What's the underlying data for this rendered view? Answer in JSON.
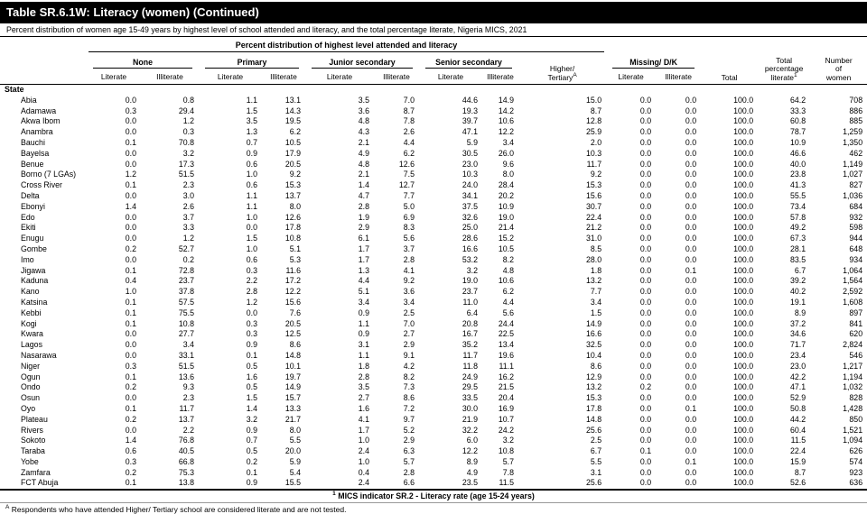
{
  "title": "Table SR.6.1W: Literacy (women) (Continued)",
  "subtitle": "Percent distribution of women age 15-49 years by highest level of school attended and literacy, and the total percentage literate, Nigeria MICS, 2021",
  "header": {
    "span_title": "Percent distribution of highest level attended and literacy",
    "groups": {
      "none": "None",
      "primary": "Primary",
      "junior": "Junior secondary",
      "senior": "Senior secondary",
      "higher_line1": "Higher/",
      "higher_line2": "Tertiary",
      "higher_sup": "A",
      "missing": "Missing/ D/K"
    },
    "sub": {
      "literate": "Literate",
      "illiterate": "Illiterate"
    },
    "total": "Total",
    "total_pct_line1": "Total",
    "total_pct_line2": "percentage",
    "total_pct_line3": "literate",
    "total_pct_sup": "1",
    "women_line1": "Number",
    "women_line2": "of",
    "women_line3": "women"
  },
  "section_label": "State",
  "rows": [
    {
      "state": "Abia",
      "values": [
        "0.0",
        "0.8",
        "1.1",
        "13.1",
        "3.5",
        "7.0",
        "44.6",
        "14.9",
        "15.0",
        "0.0",
        "0.0",
        "100.0",
        "64.2",
        "708"
      ]
    },
    {
      "state": "Adamawa",
      "values": [
        "0.3",
        "29.4",
        "1.5",
        "14.3",
        "3.6",
        "8.7",
        "19.3",
        "14.2",
        "8.7",
        "0.0",
        "0.0",
        "100.0",
        "33.3",
        "886"
      ]
    },
    {
      "state": "Akwa Ibom",
      "values": [
        "0.0",
        "1.2",
        "3.5",
        "19.5",
        "4.8",
        "7.8",
        "39.7",
        "10.6",
        "12.8",
        "0.0",
        "0.0",
        "100.0",
        "60.8",
        "885"
      ]
    },
    {
      "state": "Anambra",
      "values": [
        "0.0",
        "0.3",
        "1.3",
        "6.2",
        "4.3",
        "2.6",
        "47.1",
        "12.2",
        "25.9",
        "0.0",
        "0.0",
        "100.0",
        "78.7",
        "1,259"
      ]
    },
    {
      "state": "Bauchi",
      "values": [
        "0.1",
        "70.8",
        "0.7",
        "10.5",
        "2.1",
        "4.4",
        "5.9",
        "3.4",
        "2.0",
        "0.0",
        "0.0",
        "100.0",
        "10.9",
        "1,350"
      ]
    },
    {
      "state": "Bayelsa",
      "values": [
        "0.0",
        "3.2",
        "0.9",
        "17.9",
        "4.9",
        "6.2",
        "30.5",
        "26.0",
        "10.3",
        "0.0",
        "0.0",
        "100.0",
        "46.6",
        "462"
      ]
    },
    {
      "state": "Benue",
      "values": [
        "0.0",
        "17.3",
        "0.6",
        "20.5",
        "4.8",
        "12.6",
        "23.0",
        "9.6",
        "11.7",
        "0.0",
        "0.0",
        "100.0",
        "40.0",
        "1,149"
      ]
    },
    {
      "state": "Borno (7 LGAs)",
      "values": [
        "1.2",
        "51.5",
        "1.0",
        "9.2",
        "2.1",
        "7.5",
        "10.3",
        "8.0",
        "9.2",
        "0.0",
        "0.0",
        "100.0",
        "23.8",
        "1,027"
      ]
    },
    {
      "state": "Cross River",
      "values": [
        "0.1",
        "2.3",
        "0.6",
        "15.3",
        "1.4",
        "12.7",
        "24.0",
        "28.4",
        "15.3",
        "0.0",
        "0.0",
        "100.0",
        "41.3",
        "827"
      ]
    },
    {
      "state": "Delta",
      "values": [
        "0.0",
        "3.0",
        "1.1",
        "13.7",
        "4.7",
        "7.7",
        "34.1",
        "20.2",
        "15.6",
        "0.0",
        "0.0",
        "100.0",
        "55.5",
        "1,036"
      ]
    },
    {
      "state": "Ebonyi",
      "values": [
        "1.4",
        "2.6",
        "1.1",
        "8.0",
        "2.8",
        "5.0",
        "37.5",
        "10.9",
        "30.7",
        "0.0",
        "0.0",
        "100.0",
        "73.4",
        "684"
      ]
    },
    {
      "state": "Edo",
      "values": [
        "0.0",
        "3.7",
        "1.0",
        "12.6",
        "1.9",
        "6.9",
        "32.6",
        "19.0",
        "22.4",
        "0.0",
        "0.0",
        "100.0",
        "57.8",
        "932"
      ]
    },
    {
      "state": "Ekiti",
      "values": [
        "0.0",
        "3.3",
        "0.0",
        "17.8",
        "2.9",
        "8.3",
        "25.0",
        "21.4",
        "21.2",
        "0.0",
        "0.0",
        "100.0",
        "49.2",
        "598"
      ]
    },
    {
      "state": "Enugu",
      "values": [
        "0.0",
        "1.2",
        "1.5",
        "10.8",
        "6.1",
        "5.6",
        "28.6",
        "15.2",
        "31.0",
        "0.0",
        "0.0",
        "100.0",
        "67.3",
        "944"
      ]
    },
    {
      "state": "Gombe",
      "values": [
        "0.2",
        "52.7",
        "1.0",
        "5.1",
        "1.7",
        "3.7",
        "16.6",
        "10.5",
        "8.5",
        "0.0",
        "0.0",
        "100.0",
        "28.1",
        "648"
      ]
    },
    {
      "state": "Imo",
      "values": [
        "0.0",
        "0.2",
        "0.6",
        "5.3",
        "1.7",
        "2.8",
        "53.2",
        "8.2",
        "28.0",
        "0.0",
        "0.0",
        "100.0",
        "83.5",
        "934"
      ]
    },
    {
      "state": "Jigawa",
      "values": [
        "0.1",
        "72.8",
        "0.3",
        "11.6",
        "1.3",
        "4.1",
        "3.2",
        "4.8",
        "1.8",
        "0.0",
        "0.1",
        "100.0",
        "6.7",
        "1,064"
      ]
    },
    {
      "state": "Kaduna",
      "values": [
        "0.4",
        "23.7",
        "2.2",
        "17.2",
        "4.4",
        "9.2",
        "19.0",
        "10.6",
        "13.2",
        "0.0",
        "0.0",
        "100.0",
        "39.2",
        "1,564"
      ]
    },
    {
      "state": "Kano",
      "values": [
        "1.0",
        "37.8",
        "2.8",
        "12.2",
        "5.1",
        "3.6",
        "23.7",
        "6.2",
        "7.7",
        "0.0",
        "0.0",
        "100.0",
        "40.2",
        "2,592"
      ]
    },
    {
      "state": "Katsina",
      "values": [
        "0.1",
        "57.5",
        "1.2",
        "15.6",
        "3.4",
        "3.4",
        "11.0",
        "4.4",
        "3.4",
        "0.0",
        "0.0",
        "100.0",
        "19.1",
        "1,608"
      ]
    },
    {
      "state": "Kebbi",
      "values": [
        "0.1",
        "75.5",
        "0.0",
        "7.6",
        "0.9",
        "2.5",
        "6.4",
        "5.6",
        "1.5",
        "0.0",
        "0.0",
        "100.0",
        "8.9",
        "897"
      ]
    },
    {
      "state": "Kogi",
      "values": [
        "0.1",
        "10.8",
        "0.3",
        "20.5",
        "1.1",
        "7.0",
        "20.8",
        "24.4",
        "14.9",
        "0.0",
        "0.0",
        "100.0",
        "37.2",
        "841"
      ]
    },
    {
      "state": "Kwara",
      "values": [
        "0.0",
        "27.7",
        "0.3",
        "12.5",
        "0.9",
        "2.7",
        "16.7",
        "22.5",
        "16.6",
        "0.0",
        "0.0",
        "100.0",
        "34.6",
        "620"
      ]
    },
    {
      "state": "Lagos",
      "values": [
        "0.0",
        "3.4",
        "0.9",
        "8.6",
        "3.1",
        "2.9",
        "35.2",
        "13.4",
        "32.5",
        "0.0",
        "0.0",
        "100.0",
        "71.7",
        "2,824"
      ]
    },
    {
      "state": "Nasarawa",
      "values": [
        "0.0",
        "33.1",
        "0.1",
        "14.8",
        "1.1",
        "9.1",
        "11.7",
        "19.6",
        "10.4",
        "0.0",
        "0.0",
        "100.0",
        "23.4",
        "546"
      ]
    },
    {
      "state": "Niger",
      "values": [
        "0.3",
        "51.5",
        "0.5",
        "10.1",
        "1.8",
        "4.2",
        "11.8",
        "11.1",
        "8.6",
        "0.0",
        "0.0",
        "100.0",
        "23.0",
        "1,217"
      ]
    },
    {
      "state": "Ogun",
      "values": [
        "0.1",
        "13.6",
        "1.6",
        "19.7",
        "2.8",
        "8.2",
        "24.9",
        "16.2",
        "12.9",
        "0.0",
        "0.0",
        "100.0",
        "42.2",
        "1,194"
      ]
    },
    {
      "state": "Ondo",
      "values": [
        "0.2",
        "9.3",
        "0.5",
        "14.9",
        "3.5",
        "7.3",
        "29.5",
        "21.5",
        "13.2",
        "0.2",
        "0.0",
        "100.0",
        "47.1",
        "1,032"
      ]
    },
    {
      "state": "Osun",
      "values": [
        "0.0",
        "2.3",
        "1.5",
        "15.7",
        "2.7",
        "8.6",
        "33.5",
        "20.4",
        "15.3",
        "0.0",
        "0.0",
        "100.0",
        "52.9",
        "828"
      ]
    },
    {
      "state": "Oyo",
      "values": [
        "0.1",
        "11.7",
        "1.4",
        "13.3",
        "1.6",
        "7.2",
        "30.0",
        "16.9",
        "17.8",
        "0.0",
        "0.1",
        "100.0",
        "50.8",
        "1,428"
      ]
    },
    {
      "state": "Plateau",
      "values": [
        "0.2",
        "13.7",
        "3.2",
        "21.7",
        "4.1",
        "9.7",
        "21.9",
        "10.7",
        "14.8",
        "0.0",
        "0.0",
        "100.0",
        "44.2",
        "850"
      ]
    },
    {
      "state": "Rivers",
      "values": [
        "0.0",
        "2.2",
        "0.9",
        "8.0",
        "1.7",
        "5.2",
        "32.2",
        "24.2",
        "25.6",
        "0.0",
        "0.0",
        "100.0",
        "60.4",
        "1,521"
      ]
    },
    {
      "state": "Sokoto",
      "values": [
        "1.4",
        "76.8",
        "0.7",
        "5.5",
        "1.0",
        "2.9",
        "6.0",
        "3.2",
        "2.5",
        "0.0",
        "0.0",
        "100.0",
        "11.5",
        "1,094"
      ]
    },
    {
      "state": "Taraba",
      "values": [
        "0.6",
        "40.5",
        "0.5",
        "20.0",
        "2.4",
        "6.3",
        "12.2",
        "10.8",
        "6.7",
        "0.1",
        "0.0",
        "100.0",
        "22.4",
        "626"
      ]
    },
    {
      "state": "Yobe",
      "values": [
        "0.3",
        "66.8",
        "0.2",
        "5.9",
        "1.0",
        "5.7",
        "8.9",
        "5.7",
        "5.5",
        "0.0",
        "0.1",
        "100.0",
        "15.9",
        "574"
      ]
    },
    {
      "state": "Zamfara",
      "values": [
        "0.2",
        "75.3",
        "0.1",
        "5.4",
        "0.4",
        "2.8",
        "4.9",
        "7.8",
        "3.1",
        "0.0",
        "0.0",
        "100.0",
        "8.7",
        "923"
      ]
    },
    {
      "state": "FCT Abuja",
      "values": [
        "0.1",
        "13.8",
        "0.9",
        "15.5",
        "2.4",
        "6.6",
        "23.5",
        "11.5",
        "25.6",
        "0.0",
        "0.0",
        "100.0",
        "52.6",
        "636"
      ]
    }
  ],
  "footnotes": {
    "indicator_sup": "1",
    "indicator": " MICS indicator SR.2 - Literacy rate (age 15-24 years)",
    "respondents_sup": "A",
    "respondents": " Respondents who have attended Higher/ Tertiary school are considered literate and are not tested."
  }
}
